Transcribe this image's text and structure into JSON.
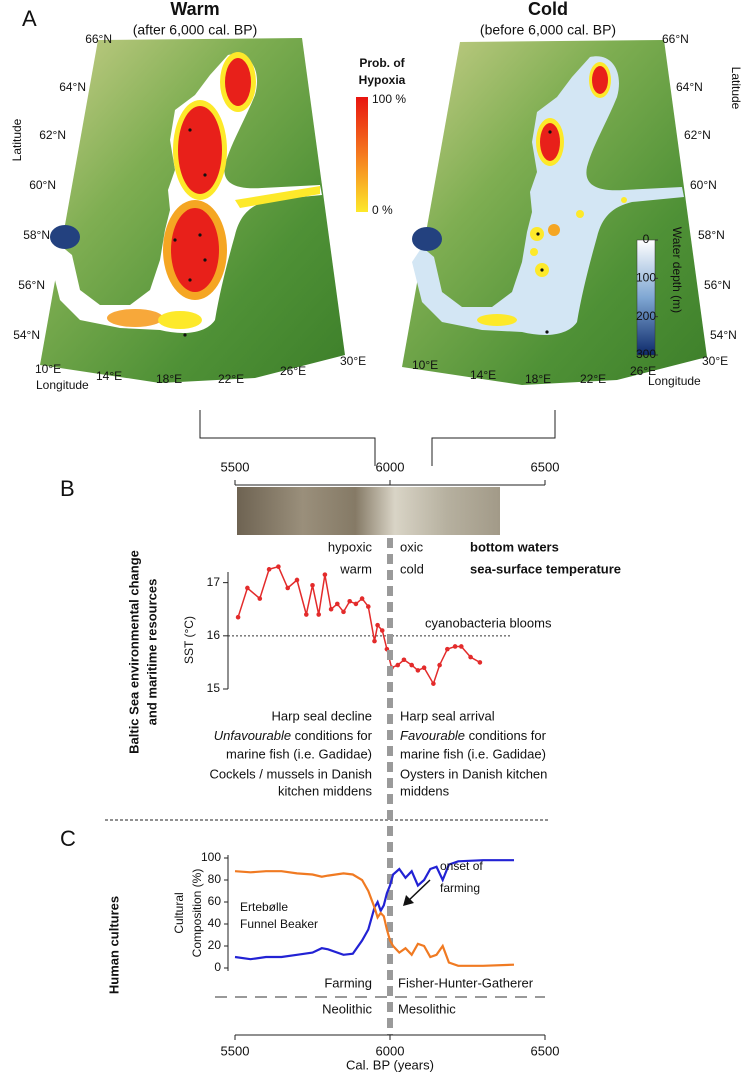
{
  "panel_labels": [
    "A",
    "B",
    "C"
  ],
  "maps": [
    {
      "title": "Warm",
      "subtitle": "(after 6,000 cal. BP)",
      "lat_labels": [
        "66°N",
        "64°N",
        "62°N",
        "60°N",
        "58°N",
        "56°N",
        "54°N"
      ],
      "lon_labels": [
        "10°E",
        "14°E",
        "18°E",
        "22°E",
        "26°E",
        "30°E"
      ],
      "x_label": "Longitude",
      "y_label": "Latitude"
    },
    {
      "title": "Cold",
      "subtitle": "(before 6,000 cal. BP)",
      "lat_labels": [
        "66°N",
        "64°N",
        "62°N",
        "60°N",
        "58°N",
        "56°N",
        "54°N"
      ],
      "lon_labels": [
        "10°E",
        "14°E",
        "18°E",
        "22°E",
        "26°E",
        "30°E"
      ],
      "x_label": "Longitude",
      "y_label": "Latitude"
    }
  ],
  "hypoxia_legend": {
    "title": [
      "Prob. of",
      "Hypoxia"
    ],
    "max_label": "100 %",
    "min_label": "0 %"
  },
  "depth_legend": {
    "title": "Water depth (m)",
    "lim": [
      0,
      300
    ],
    "ticks": [
      0,
      100,
      200,
      300
    ]
  },
  "core_annotations": {
    "row1": [
      "hypoxic",
      "oxic",
      "bottom waters"
    ],
    "row2": [
      "warm",
      "cold",
      "sea-surface temperature"
    ]
  },
  "panel_b_label": [
    "Baltic Sea environmental change",
    "and maritime resources"
  ],
  "resources": {
    "left": [
      "Harp seal decline",
      [
        "Unfavourable",
        " conditions for"
      ],
      "marine fish (i.e. Gadidae)",
      "Cockels / mussels in Danish",
      "kitchen middens"
    ],
    "right": [
      "Harp seal arrival",
      [
        "Favourable",
        " conditions for"
      ],
      "marine  fish (i.e. Gadidae)",
      "Oysters in Danish kitchen",
      "middens"
    ]
  },
  "panel_c_label": "Human cultures",
  "chart_data": [
    {
      "type": "line",
      "y_label": "SST (°C)",
      "x": [
        5510,
        5540,
        5580,
        5610,
        5640,
        5670,
        5700,
        5730,
        5750,
        5770,
        5790,
        5810,
        5830,
        5850,
        5870,
        5890,
        5910,
        5930,
        5950,
        5960,
        5975,
        5990,
        6005,
        6025,
        6045,
        6070,
        6090,
        6110,
        6140,
        6160,
        6185,
        6210,
        6230,
        6260,
        6290
      ],
      "values": [
        16.35,
        16.9,
        16.7,
        17.25,
        17.3,
        16.9,
        17.05,
        16.4,
        16.95,
        16.4,
        17.15,
        16.5,
        16.6,
        16.45,
        16.65,
        16.6,
        16.7,
        16.55,
        15.9,
        16.2,
        16.1,
        15.75,
        15.4,
        15.45,
        15.55,
        15.45,
        15.35,
        15.4,
        15.1,
        15.45,
        15.75,
        15.8,
        15.8,
        15.6,
        15.5
      ],
      "color": "#e32b2b",
      "xlim": [
        5500,
        6500
      ],
      "xticks": [
        5500,
        6000,
        6500
      ],
      "ylim": [
        15,
        17.2
      ],
      "yticks": [
        15,
        16,
        17
      ],
      "reference_line": {
        "value": 16,
        "label": "cyanobacteria blooms"
      }
    },
    {
      "type": "line",
      "y_label": [
        "Cultural",
        "Composition (%)"
      ],
      "x_label": "Cal. BP (years)",
      "x": [
        5500,
        5550,
        5600,
        5650,
        5700,
        5750,
        5780,
        5800,
        5850,
        5880,
        5910,
        5930,
        5950,
        5960,
        5970,
        5980,
        5990,
        6000,
        6010,
        6030,
        6050,
        6070,
        6090,
        6110,
        6130,
        6150,
        6170,
        6190,
        6220,
        6300,
        6400
      ],
      "series": [
        {
          "name": "Ertebølle",
          "color": "#2222d4",
          "values": [
            10,
            8,
            10,
            10,
            12,
            14,
            18,
            17,
            12,
            13,
            25,
            35,
            55,
            60,
            52,
            57,
            68,
            75,
            85,
            90,
            82,
            88,
            75,
            80,
            90,
            92,
            80,
            94,
            97,
            98,
            98
          ]
        },
        {
          "name": "Funnel Beaker",
          "color": "#f07a22",
          "values": [
            88,
            87,
            88,
            88,
            86,
            85,
            83,
            84,
            86,
            85,
            80,
            70,
            55,
            46,
            50,
            47,
            35,
            25,
            20,
            14,
            18,
            12,
            22,
            20,
            10,
            12,
            20,
            5,
            2,
            2,
            3
          ]
        }
      ],
      "annotation": [
        "onset of",
        "farming"
      ],
      "xlim": [
        5500,
        6500
      ],
      "xticks": [
        5500,
        6000,
        6500
      ],
      "ylim": [
        0,
        100
      ],
      "yticks": [
        0,
        20,
        40,
        60,
        80,
        100
      ],
      "vline": 6000,
      "periods": {
        "left": [
          "Farming",
          "Neolithic"
        ],
        "right": [
          "Fisher-Hunter-Gatherer",
          "Mesolithic"
        ]
      }
    }
  ]
}
